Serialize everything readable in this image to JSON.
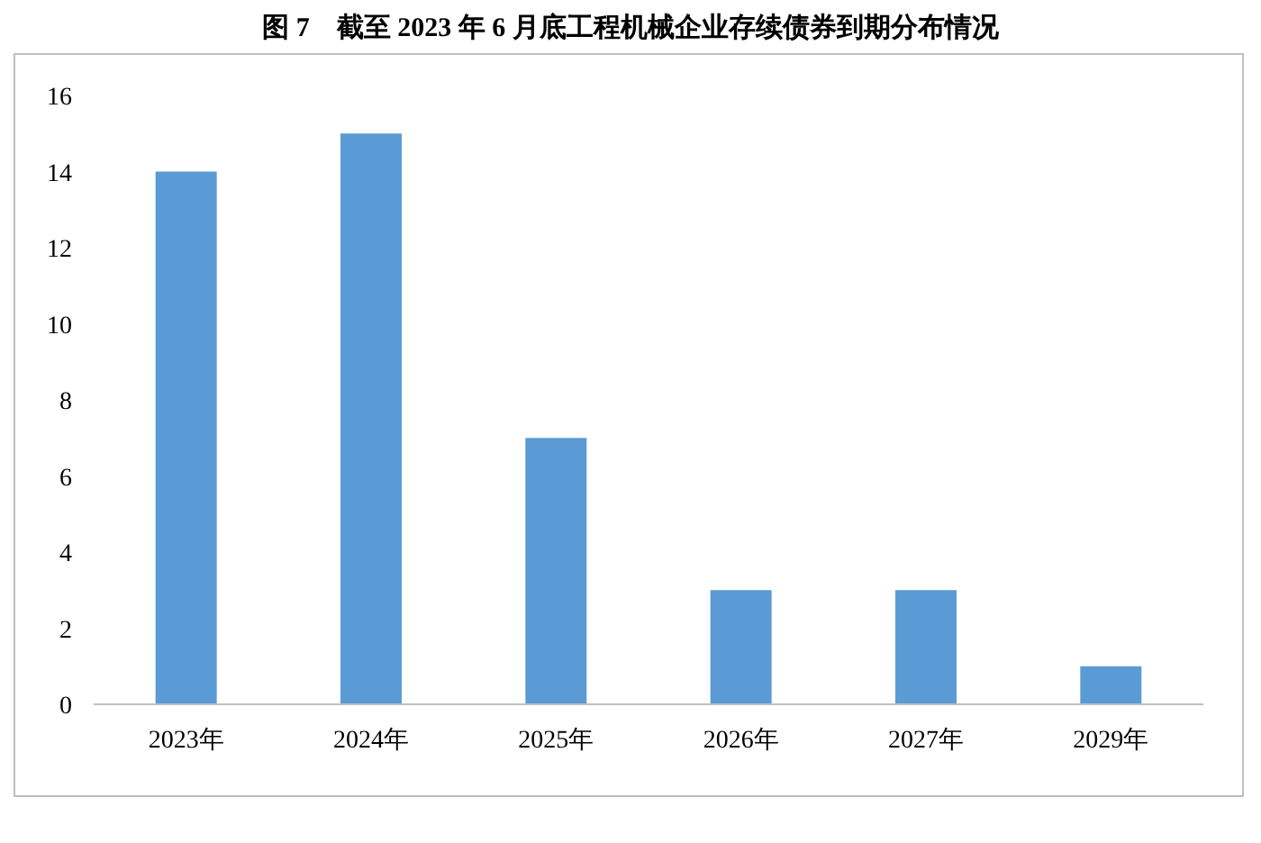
{
  "chart_data": {
    "type": "bar",
    "title": "图 7　截至 2023 年 6 月底工程机械企业存续债券到期分布情况",
    "categories": [
      "2023年",
      "2024年",
      "2025年",
      "2026年",
      "2027年",
      "2029年"
    ],
    "values": [
      14,
      15,
      7,
      3,
      3,
      1
    ],
    "color": "#5b9bd5",
    "ylim": [
      0,
      16
    ],
    "yticks": [
      0,
      2,
      4,
      6,
      8,
      10,
      12,
      14,
      16
    ],
    "grid": false,
    "legend": false
  }
}
